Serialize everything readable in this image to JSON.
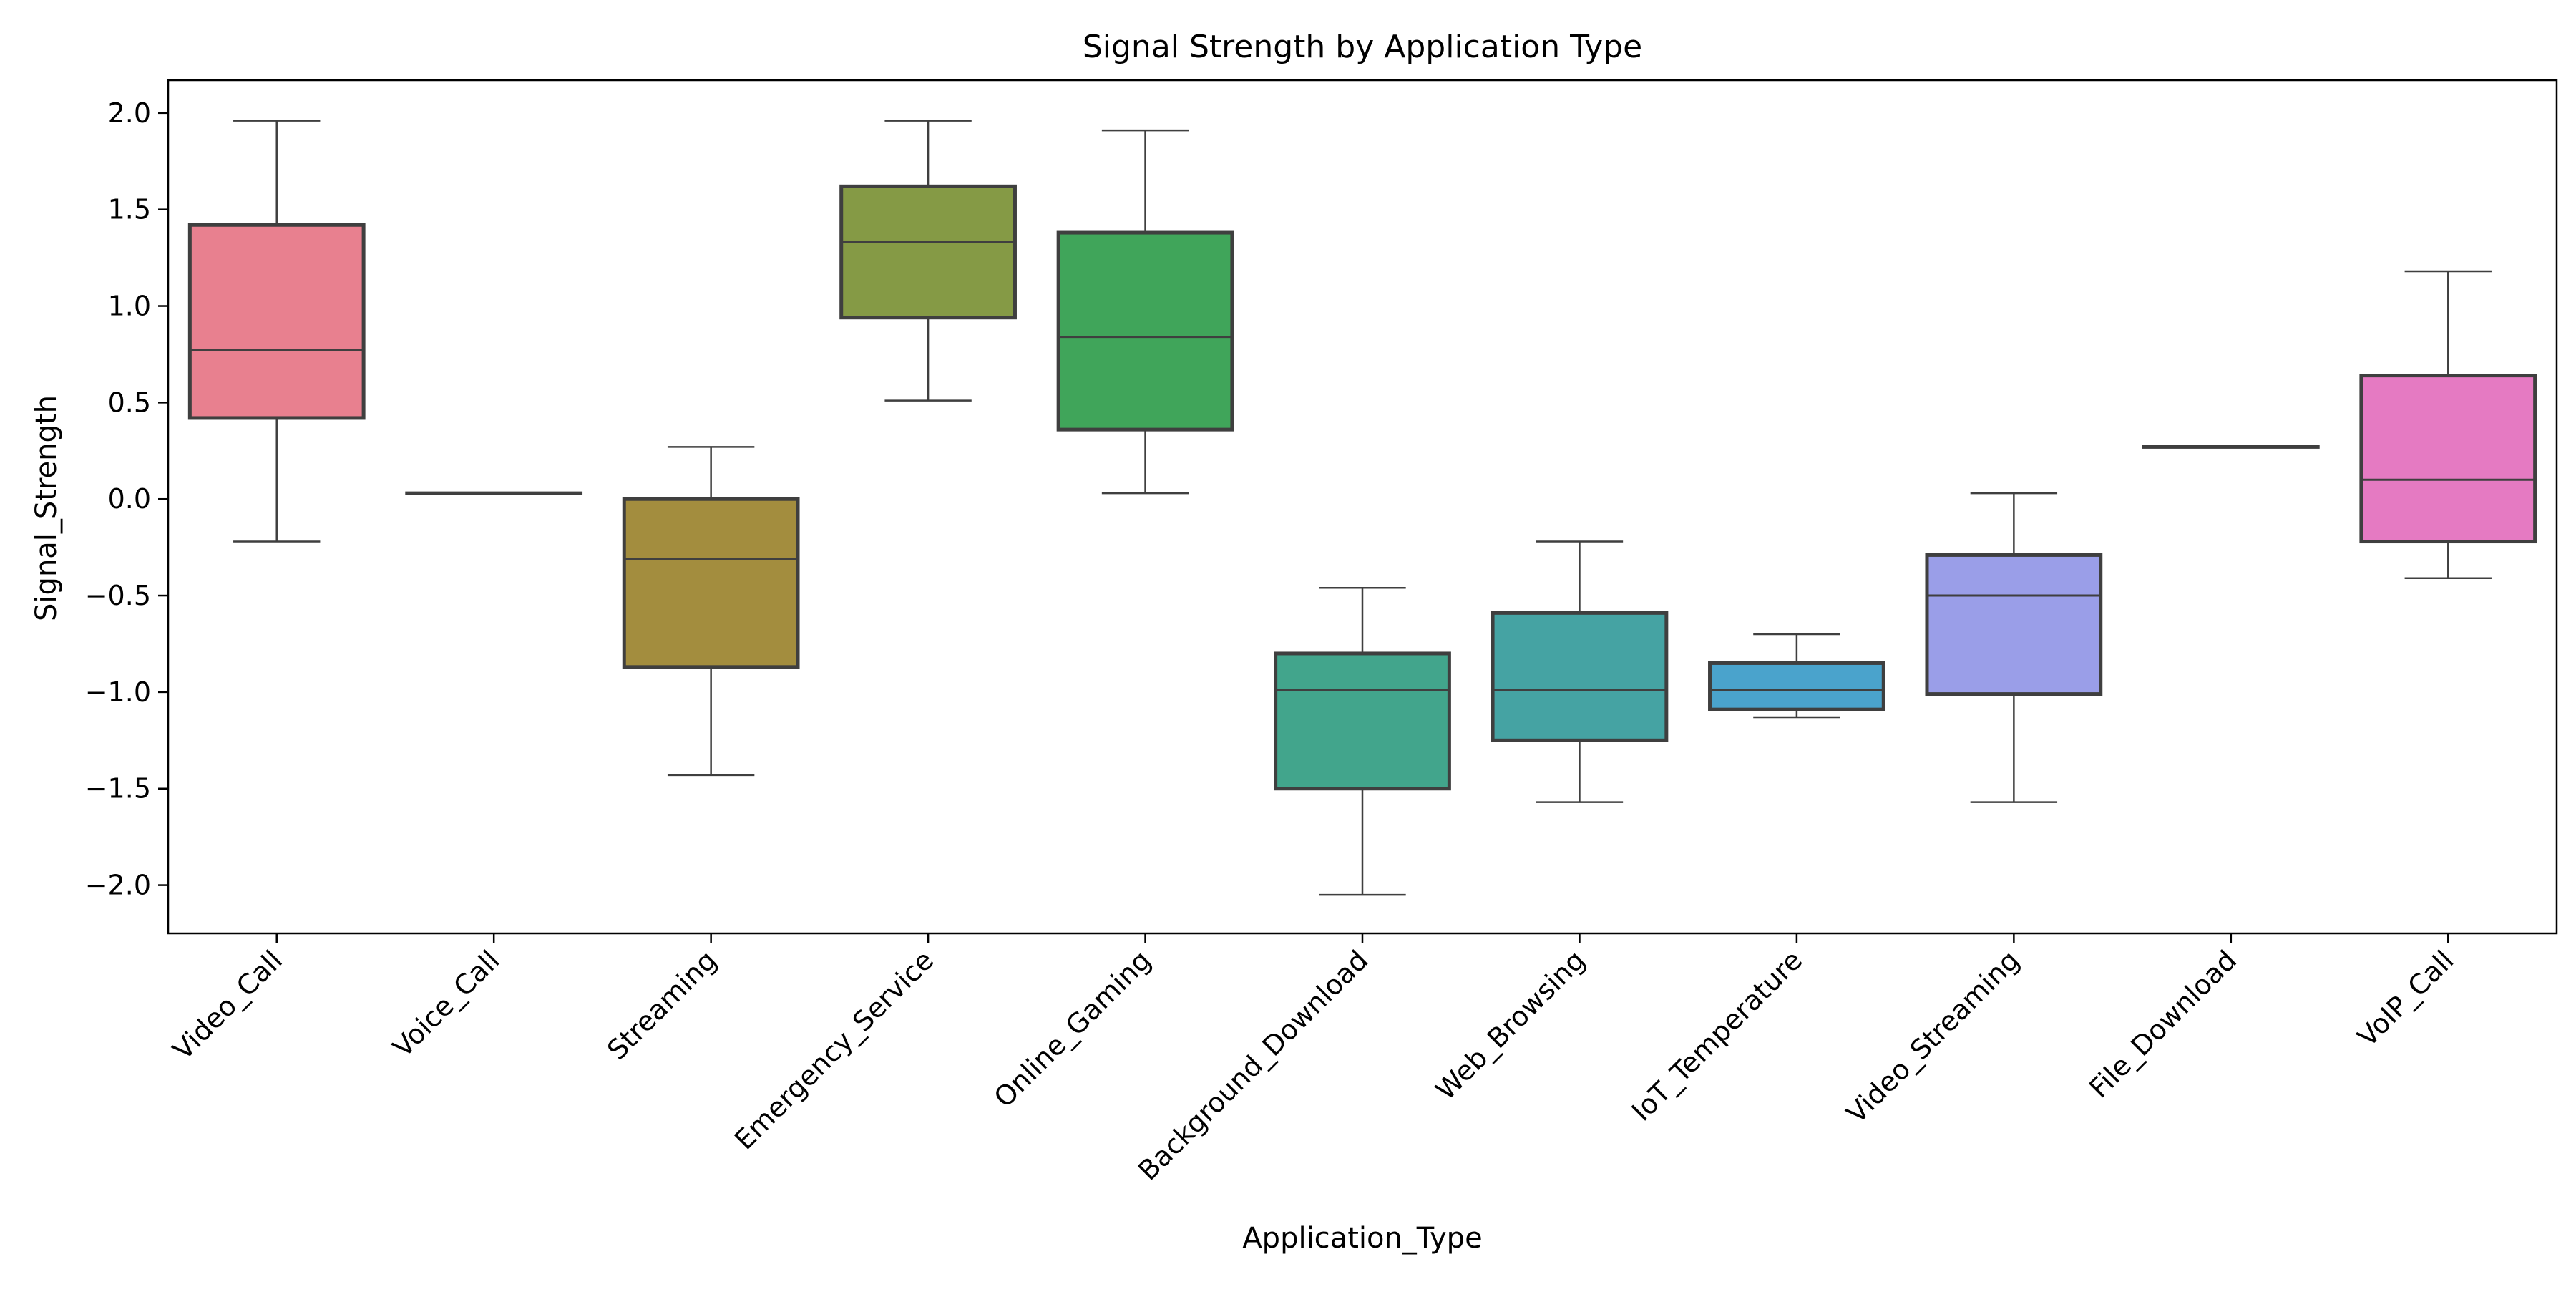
{
  "chart_data": {
    "type": "box",
    "title": "Signal Strength by Application Type",
    "xlabel": "Application_Type",
    "ylabel": "Signal_Strength",
    "ylim": [
      -2.25,
      2.17
    ],
    "yticks": [
      -2.0,
      -1.5,
      -1.0,
      -0.5,
      0.0,
      0.5,
      1.0,
      1.5,
      2.0
    ],
    "ytick_labels": [
      "−2.0",
      "−1.5",
      "−1.0",
      "−0.5",
      "0.0",
      "0.5",
      "1.0",
      "1.5",
      "2.0"
    ],
    "grid": false,
    "legend": false,
    "categories": [
      "Video_Call",
      "Voice_Call",
      "Streaming",
      "Emergency_Service",
      "Online_Gaming",
      "Background_Download",
      "Web_Browsing",
      "IoT_Temperature",
      "Video_Streaming",
      "File_Download",
      "VoIP_Call"
    ],
    "boxes": [
      {
        "whisker_low": -0.22,
        "q1": 0.42,
        "median": 0.77,
        "q3": 1.42,
        "whisker_high": 1.96,
        "color": "#e8808f"
      },
      {
        "whisker_low": 0.03,
        "q1": 0.03,
        "median": 0.03,
        "q3": 0.03,
        "whisker_high": 0.03,
        "color": "#d88e5a"
      },
      {
        "whisker_low": -1.43,
        "q1": -0.87,
        "median": -0.31,
        "q3": 0.0,
        "whisker_high": 0.27,
        "color": "#a38d3e"
      },
      {
        "whisker_low": 0.51,
        "q1": 0.94,
        "median": 1.33,
        "q3": 1.62,
        "whisker_high": 1.96,
        "color": "#859a45"
      },
      {
        "whisker_low": 0.03,
        "q1": 0.36,
        "median": 0.84,
        "q3": 1.38,
        "whisker_high": 1.91,
        "color": "#40a55a"
      },
      {
        "whisker_low": -2.05,
        "q1": -1.5,
        "median": -0.99,
        "q3": -0.8,
        "whisker_high": -0.46,
        "color": "#42a58c"
      },
      {
        "whisker_low": -1.57,
        "q1": -1.25,
        "median": -0.99,
        "q3": -0.59,
        "whisker_high": -0.22,
        "color": "#45a3a3"
      },
      {
        "whisker_low": -1.13,
        "q1": -1.09,
        "median": -0.99,
        "q3": -0.85,
        "whisker_high": -0.7,
        "color": "#4aa3cc"
      },
      {
        "whisker_low": -1.57,
        "q1": -1.01,
        "median": -0.5,
        "q3": -0.29,
        "whisker_high": 0.03,
        "color": "#9a9ee8"
      },
      {
        "whisker_low": 0.27,
        "q1": 0.27,
        "median": 0.27,
        "q3": 0.27,
        "whisker_high": 0.27,
        "color": "#c98ee0"
      },
      {
        "whisker_low": -0.41,
        "q1": -0.22,
        "median": 0.1,
        "q3": 0.64,
        "whisker_high": 1.18,
        "color": "#e57ac2"
      }
    ]
  }
}
